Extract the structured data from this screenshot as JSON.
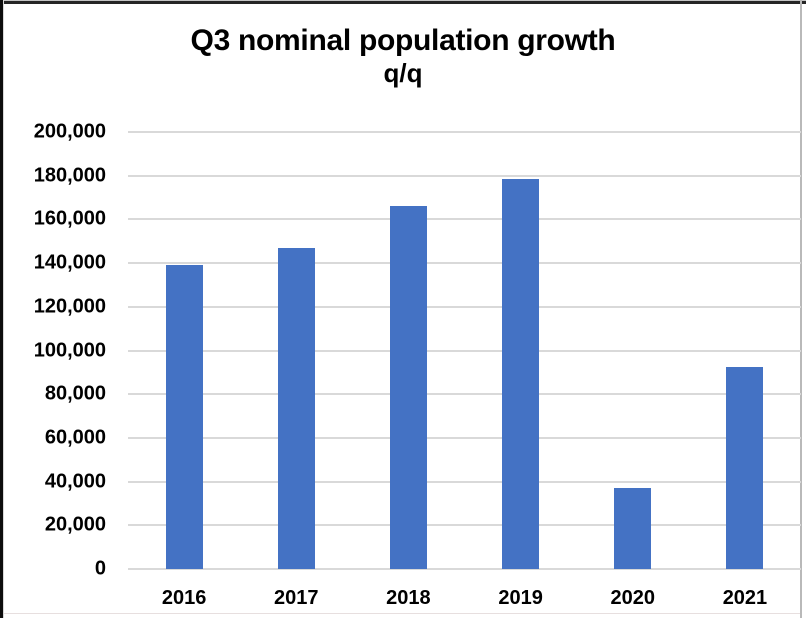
{
  "chart_data": {
    "type": "bar",
    "title": "Q3 nominal population growth",
    "subtitle": "q/q",
    "categories": [
      "2016",
      "2017",
      "2018",
      "2019",
      "2020",
      "2021"
    ],
    "values": [
      139000,
      147000,
      166000,
      178500,
      37000,
      92500
    ],
    "ylim": [
      0,
      200000
    ],
    "ytick_step": 20000,
    "ytick_labels": [
      "0",
      "20,000",
      "40,000",
      "60,000",
      "80,000",
      "100,000",
      "120,000",
      "140,000",
      "160,000",
      "180,000",
      "200,000"
    ],
    "xlabel": "",
    "ylabel": "",
    "grid": "horizontal-on",
    "legend": "none",
    "bar_color": "#4472C4",
    "gridline_color": "#D9D9D9",
    "text_color": "#000000",
    "background_color": "#ffffff"
  }
}
